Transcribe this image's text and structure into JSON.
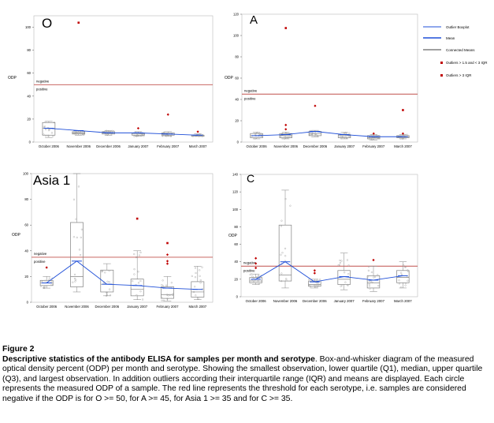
{
  "caption": {
    "label": "Figure 2",
    "title": "Descriptive statistics of the antibody ELISA for samples per month and serotype",
    "text": ". Box-and-whisker diagram of the measured optical density percent (ODP) per month and serotype. Showing the smallest observation, lower quartile (Q1), median, upper quartile (Q3), and largest observation. In addition outliers according their interquartile range (IQR) and means are displayed. Each circle represents the measured ODP of a sample. The red line represents the threshold for each serotype, i.e. samples are considered negative if the ODP is for O >= 50, for A >= 45, for Asia 1 >= 35 and for C >= 35."
  },
  "legend": {
    "entries": [
      "Outlier Boxplot",
      "Mean",
      "Connected Means",
      "Outliers > 1.5 and < 3 IQR",
      "Outliers > 3 IQR"
    ],
    "colors": {
      "red_line": "#c0504d",
      "mean": "#1f4fd8",
      "outlier": "#c00000",
      "box": "#808080",
      "dots": "#a0a0a0"
    }
  },
  "chart_data": [
    {
      "type": "box",
      "title": "O",
      "ylabel": "ODP",
      "ylim": [
        0,
        110
      ],
      "yticks": [
        0,
        20,
        40,
        60,
        80,
        100
      ],
      "categories": [
        "October 2006",
        "November 2006",
        "December 2006",
        "January 2007",
        "February 2007",
        "March 2007"
      ],
      "threshold": 50,
      "threshold_labels": [
        "negative",
        "positive"
      ],
      "boxes": [
        {
          "min": 4,
          "q1": 6,
          "median": 12,
          "q3": 17,
          "max": 18
        },
        {
          "min": 6,
          "q1": 7,
          "median": 8,
          "q3": 9,
          "max": 10
        },
        {
          "min": 6,
          "q1": 7,
          "median": 8,
          "q3": 9,
          "max": 10
        },
        {
          "min": 5,
          "q1": 6,
          "median": 7,
          "q3": 8,
          "max": 9
        },
        {
          "min": 5,
          "q1": 6,
          "median": 7,
          "q3": 8,
          "max": 9
        },
        {
          "min": 5,
          "q1": 5,
          "median": 6,
          "q3": 6,
          "max": 7
        }
      ],
      "means": [
        12,
        10,
        8,
        8,
        7,
        6
      ],
      "outliers": [
        {
          "category": 1,
          "value": 104,
          "kind": "far"
        },
        {
          "category": 3,
          "value": 12,
          "kind": "near"
        },
        {
          "category": 4,
          "value": 24,
          "kind": "near"
        },
        {
          "category": 5,
          "value": 9,
          "kind": "near"
        }
      ]
    },
    {
      "type": "box",
      "title": "A",
      "ylabel": "ODP",
      "ylim": [
        0,
        120
      ],
      "yticks": [
        0,
        20,
        40,
        60,
        80,
        100,
        120
      ],
      "categories": [
        "October 2006",
        "November 2006",
        "December 2006",
        "January 2007",
        "February 2007",
        "March 2007"
      ],
      "threshold": 45,
      "threshold_labels": [
        "negative",
        "positive"
      ],
      "boxes": [
        {
          "min": 3,
          "q1": 4,
          "median": 6,
          "q3": 8,
          "max": 9
        },
        {
          "min": 3,
          "q1": 4,
          "median": 6,
          "q3": 8,
          "max": 9
        },
        {
          "min": 5,
          "q1": 6,
          "median": 8,
          "q3": 10,
          "max": 11
        },
        {
          "min": 3,
          "q1": 4,
          "median": 6,
          "q3": 7,
          "max": 9
        },
        {
          "min": 2,
          "q1": 3,
          "median": 4,
          "q3": 6,
          "max": 7
        },
        {
          "min": 3,
          "q1": 4,
          "median": 5,
          "q3": 6,
          "max": 7
        }
      ],
      "means": [
        6,
        7,
        10,
        7,
        5,
        5
      ],
      "outliers": [
        {
          "category": 1,
          "value": 107,
          "kind": "far"
        },
        {
          "category": 1,
          "value": 16,
          "kind": "near"
        },
        {
          "category": 1,
          "value": 12,
          "kind": "near"
        },
        {
          "category": 2,
          "value": 34,
          "kind": "near"
        },
        {
          "category": 4,
          "value": 8,
          "kind": "near"
        },
        {
          "category": 5,
          "value": 30,
          "kind": "far"
        },
        {
          "category": 5,
          "value": 8,
          "kind": "near"
        }
      ]
    },
    {
      "type": "box",
      "title": "Asia 1",
      "ylabel": "ODP",
      "ylim": [
        0,
        100
      ],
      "yticks": [
        0,
        20,
        40,
        60,
        80,
        100
      ],
      "categories": [
        "October 2006",
        "November 2006",
        "December 2006",
        "January 2007",
        "February 2007",
        "March 2007"
      ],
      "threshold": 35,
      "threshold_labels": [
        "negative",
        "positive"
      ],
      "boxes": [
        {
          "min": 11,
          "q1": 13,
          "median": 15,
          "q3": 17,
          "max": 20
        },
        {
          "min": 8,
          "q1": 12,
          "median": 20,
          "q3": 62,
          "max": 100
        },
        {
          "min": 5,
          "q1": 8,
          "median": 14,
          "q3": 25,
          "max": 30
        },
        {
          "min": 2,
          "q1": 5,
          "median": 10,
          "q3": 18,
          "max": 40
        },
        {
          "min": 1,
          "q1": 3,
          "median": 6,
          "q3": 12,
          "max": 20
        },
        {
          "min": 2,
          "q1": 4,
          "median": 8,
          "q3": 16,
          "max": 28
        }
      ],
      "means": [
        15,
        32,
        14,
        13,
        11,
        10
      ],
      "outliers": [
        {
          "category": 0,
          "value": 27,
          "kind": "near"
        },
        {
          "category": 3,
          "value": 65,
          "kind": "far"
        },
        {
          "category": 4,
          "value": 46,
          "kind": "far"
        },
        {
          "category": 4,
          "value": 37,
          "kind": "near"
        },
        {
          "category": 4,
          "value": 32,
          "kind": "near"
        },
        {
          "category": 4,
          "value": 30,
          "kind": "near"
        }
      ]
    },
    {
      "type": "box",
      "title": "C",
      "ylabel": "ODP",
      "ylim": [
        0,
        140
      ],
      "yticks": [
        0,
        20,
        40,
        60,
        80,
        100,
        120,
        140
      ],
      "categories": [
        "October 2006",
        "November 2006",
        "December 2006",
        "January 2007",
        "February 2007",
        "March 2007"
      ],
      "threshold": 35,
      "threshold_labels": [
        "negative",
        "positive"
      ],
      "boxes": [
        {
          "min": 14,
          "q1": 16,
          "median": 18,
          "q3": 22,
          "max": 26
        },
        {
          "min": 10,
          "q1": 18,
          "median": 25,
          "q3": 82,
          "max": 122
        },
        {
          "min": 10,
          "q1": 12,
          "median": 14,
          "q3": 18,
          "max": 20
        },
        {
          "min": 8,
          "q1": 14,
          "median": 20,
          "q3": 30,
          "max": 50
        },
        {
          "min": 6,
          "q1": 10,
          "median": 16,
          "q3": 24,
          "max": 35
        },
        {
          "min": 10,
          "q1": 16,
          "median": 22,
          "q3": 30,
          "max": 40
        }
      ],
      "means": [
        20,
        40,
        17,
        23,
        19,
        24
      ],
      "outliers": [
        {
          "category": 0,
          "value": 44,
          "kind": "near"
        },
        {
          "category": 0,
          "value": 38,
          "kind": "near"
        },
        {
          "category": 0,
          "value": 33,
          "kind": "near"
        },
        {
          "category": 2,
          "value": 30,
          "kind": "near"
        },
        {
          "category": 2,
          "value": 27,
          "kind": "near"
        },
        {
          "category": 4,
          "value": 42,
          "kind": "near"
        }
      ]
    }
  ]
}
